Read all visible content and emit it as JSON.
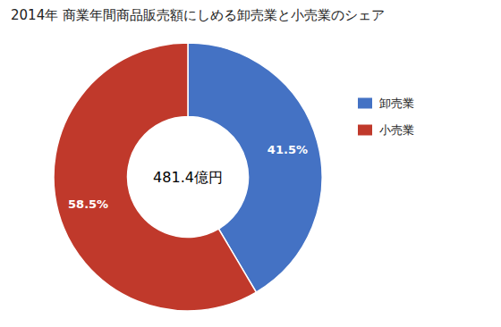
{
  "chart_data": {
    "type": "donut",
    "title": "2014年 商業年間商品販売額にしめる卸売業と小売業のシェア",
    "categories": [
      "卸売業",
      "小売業"
    ],
    "values": [
      41.5,
      58.5
    ],
    "value_labels": [
      "41.5%",
      "58.5%"
    ],
    "colors": [
      "#4472C4",
      "#C0392B"
    ],
    "annotations": [
      "481.4億円"
    ],
    "data_labels": true,
    "legend": "right"
  }
}
